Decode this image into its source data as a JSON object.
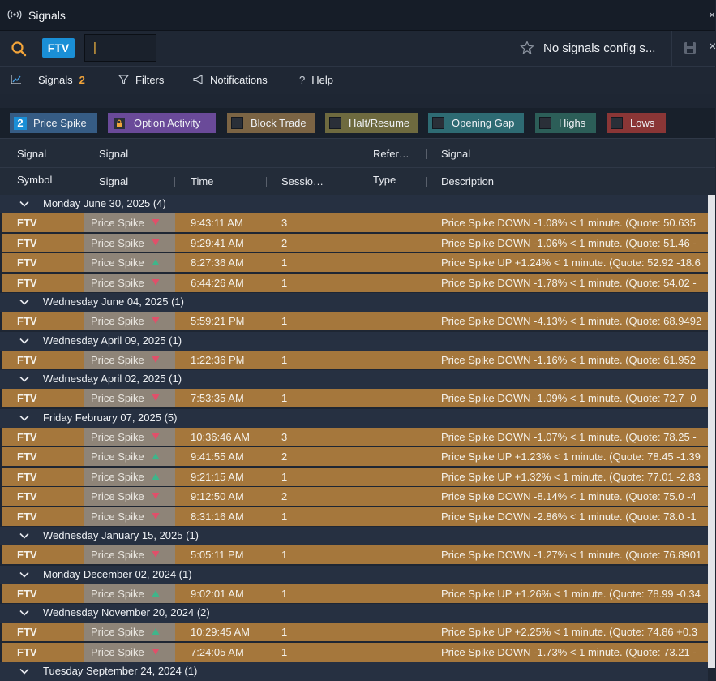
{
  "window": {
    "title": "Signals"
  },
  "toolbar": {
    "symbol": "FTV",
    "input_value": "|",
    "config_label": "No signals config s..."
  },
  "tabs": [
    {
      "label": "Signals",
      "badge": "2"
    },
    {
      "label": "Filters"
    },
    {
      "label": "Notifications"
    },
    {
      "label": "Help"
    }
  ],
  "filters": [
    {
      "label": "Price Spike",
      "count": "2",
      "color": "#365c84"
    },
    {
      "label": "Option Activity",
      "color": "#6a4a99"
    },
    {
      "label": "Block Trade",
      "color": "#7b6444"
    },
    {
      "label": "Halt/Resume",
      "color": "#6e6a3f"
    },
    {
      "label": "Opening Gap",
      "color": "#2e6b73"
    },
    {
      "label": "Highs",
      "color": "#2c5e58"
    },
    {
      "label": "Lows",
      "color": "#8a3636"
    }
  ],
  "columns": {
    "top": {
      "signal": "Signal",
      "signal2": "Signal",
      "reference": "Refer…",
      "signal3": "Signal"
    },
    "bottom": {
      "symbol": "Symbol",
      "signal": "Signal",
      "time": "Time",
      "session": "Sessio…",
      "type": "Type",
      "description": "Description"
    }
  },
  "groups": [
    {
      "label": "Monday June 30, 2025",
      "count": "(4)",
      "rows": [
        {
          "symbol": "FTV",
          "signal": "Price Spike",
          "dir": "down",
          "time": "9:43:11 AM",
          "session": "3",
          "desc": "Price Spike DOWN -1.08% < 1 minute. (Quote: 50.635"
        },
        {
          "symbol": "FTV",
          "signal": "Price Spike",
          "dir": "down",
          "time": "9:29:41 AM",
          "session": "2",
          "desc": "Price Spike DOWN -1.06% < 1 minute. (Quote: 51.46 -"
        },
        {
          "symbol": "FTV",
          "signal": "Price Spike",
          "dir": "up",
          "time": "8:27:36 AM",
          "session": "1",
          "desc": "Price Spike UP +1.24% < 1 minute. (Quote: 52.92 -18.6"
        },
        {
          "symbol": "FTV",
          "signal": "Price Spike",
          "dir": "down",
          "time": "6:44:26 AM",
          "session": "1",
          "desc": "Price Spike DOWN -1.78% < 1 minute. (Quote: 54.02 -"
        }
      ]
    },
    {
      "label": "Wednesday June 04, 2025",
      "count": "(1)",
      "rows": [
        {
          "symbol": "FTV",
          "signal": "Price Spike",
          "dir": "down",
          "time": "5:59:21 PM",
          "session": "1",
          "desc": "Price Spike DOWN -4.13% < 1 minute. (Quote: 68.9492"
        }
      ]
    },
    {
      "label": "Wednesday April 09, 2025",
      "count": "(1)",
      "rows": [
        {
          "symbol": "FTV",
          "signal": "Price Spike",
          "dir": "down",
          "time": "1:22:36 PM",
          "session": "1",
          "desc": "Price Spike DOWN -1.16% < 1 minute. (Quote: 61.952"
        }
      ]
    },
    {
      "label": "Wednesday April 02, 2025",
      "count": "(1)",
      "rows": [
        {
          "symbol": "FTV",
          "signal": "Price Spike",
          "dir": "down",
          "time": "7:53:35 AM",
          "session": "1",
          "desc": "Price Spike DOWN -1.09% < 1 minute. (Quote: 72.7 -0"
        }
      ]
    },
    {
      "label": "Friday February 07, 2025",
      "count": "(5)",
      "rows": [
        {
          "symbol": "FTV",
          "signal": "Price Spike",
          "dir": "down",
          "time": "10:36:46 AM",
          "session": "3",
          "desc": "Price Spike DOWN -1.07% < 1 minute. (Quote: 78.25 -"
        },
        {
          "symbol": "FTV",
          "signal": "Price Spike",
          "dir": "up",
          "time": "9:41:55 AM",
          "session": "2",
          "desc": "Price Spike UP +1.23% < 1 minute. (Quote: 78.45 -1.39"
        },
        {
          "symbol": "FTV",
          "signal": "Price Spike",
          "dir": "up",
          "time": "9:21:15 AM",
          "session": "1",
          "desc": "Price Spike UP +1.32% < 1 minute. (Quote: 77.01 -2.83"
        },
        {
          "symbol": "FTV",
          "signal": "Price Spike",
          "dir": "down",
          "time": "9:12:50 AM",
          "session": "2",
          "desc": "Price Spike DOWN -8.14% < 1 minute. (Quote: 75.0 -4"
        },
        {
          "symbol": "FTV",
          "signal": "Price Spike",
          "dir": "down",
          "time": "8:31:16 AM",
          "session": "1",
          "desc": "Price Spike DOWN -2.86% < 1 minute. (Quote: 78.0 -1"
        }
      ]
    },
    {
      "label": "Wednesday January 15, 2025",
      "count": "(1)",
      "rows": [
        {
          "symbol": "FTV",
          "signal": "Price Spike",
          "dir": "down",
          "time": "5:05:11 PM",
          "session": "1",
          "desc": "Price Spike DOWN -1.27% < 1 minute. (Quote: 76.8901"
        }
      ]
    },
    {
      "label": "Monday December 02, 2024",
      "count": "(1)",
      "rows": [
        {
          "symbol": "FTV",
          "signal": "Price Spike",
          "dir": "up",
          "time": "9:02:01 AM",
          "session": "1",
          "desc": "Price Spike UP +1.26% < 1 minute. (Quote: 78.99 -0.34"
        }
      ]
    },
    {
      "label": "Wednesday November 20, 2024",
      "count": "(2)",
      "rows": [
        {
          "symbol": "FTV",
          "signal": "Price Spike",
          "dir": "up",
          "time": "10:29:45 AM",
          "session": "1",
          "desc": "Price Spike UP +2.25% < 1 minute. (Quote: 74.86 +0.3"
        },
        {
          "symbol": "FTV",
          "signal": "Price Spike",
          "dir": "down",
          "time": "7:24:05 AM",
          "session": "1",
          "desc": "Price Spike DOWN -1.73% < 1 minute. (Quote: 73.21 -"
        }
      ]
    },
    {
      "label": "Tuesday September 24, 2024",
      "count": "(1)",
      "rows": []
    }
  ],
  "colors": {
    "row_bg": "#a5773c",
    "up_arrow": "#3fb58a",
    "down_arrow": "#e0506a",
    "accent": "#1a8fd6"
  }
}
